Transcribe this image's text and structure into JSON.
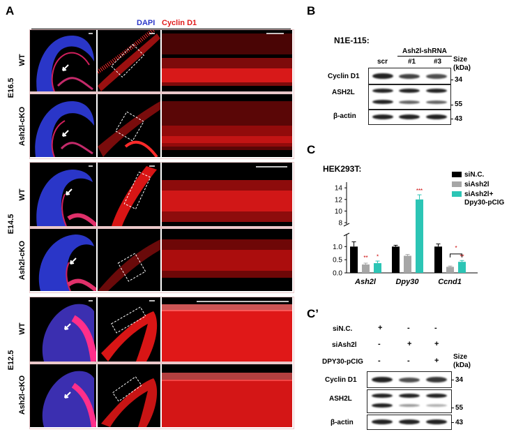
{
  "panel_a": {
    "letter": "A",
    "stain_dapi": "DAPI",
    "stain_cyclin": "Cyclin D1",
    "stages": [
      {
        "stage": "E16.5",
        "rows": [
          "WT",
          "Ash2l-cKO"
        ]
      },
      {
        "stage": "E14.5",
        "rows": [
          "WT",
          "Ash2l-cKO"
        ]
      },
      {
        "stage": "E12.5",
        "rows": [
          "WT",
          "Ash2l-cKO"
        ]
      }
    ],
    "colors": {
      "dapi": "#2a36c8",
      "cyclin": "#e01a1a",
      "border": "#eac7c9"
    }
  },
  "panel_b": {
    "letter": "B",
    "cell_line": "N1E-115:",
    "shrna_label": "Ash2l-shRNA",
    "lanes": [
      "scr",
      "#1",
      "#3"
    ],
    "size_label": "Size",
    "size_unit": "(kDa)",
    "blots": [
      {
        "name": "Cyclin D1",
        "size": "34"
      },
      {
        "name": "ASH2L",
        "size": "55"
      },
      {
        "name": "β-actin",
        "size": "43"
      }
    ]
  },
  "panel_c": {
    "letter": "C",
    "cell_line": "HEK293T:"
  },
  "chart_data": {
    "type": "bar",
    "categories": [
      "Ash2l",
      "Dpy30",
      "Ccnd1"
    ],
    "series": [
      {
        "name": "siN.C.",
        "color": "#000000",
        "values": [
          1.0,
          1.0,
          1.0
        ],
        "errors": [
          0.18,
          0.05,
          0.1
        ]
      },
      {
        "name": "siAsh2l",
        "color": "#a6a6a6",
        "values": [
          0.32,
          0.65,
          0.23
        ],
        "errors": [
          0.05,
          0.05,
          0.03
        ]
      },
      {
        "name": "siAsh2l+\nDpy30-pCIG",
        "color": "#2cc5b5",
        "values": [
          0.37,
          12.0,
          0.42
        ],
        "errors": [
          0.08,
          0.8,
          0.05
        ]
      }
    ],
    "y_lower_ticks": [
      "0.0",
      "0.5",
      "1.0"
    ],
    "y_upper_ticks": [
      "8",
      "10",
      "12",
      "14"
    ],
    "ylim_lower": [
      0,
      1.3
    ],
    "ylim_upper": [
      8,
      14.5
    ],
    "axis_break": true,
    "significance_marks": [
      "**",
      "*",
      "***",
      "**",
      "*"
    ]
  },
  "panel_c2": {
    "letter": "C’",
    "conditions": [
      {
        "name": "siN.C.",
        "marks": [
          "+",
          "-",
          "-"
        ]
      },
      {
        "name": "siAsh2l",
        "marks": [
          "-",
          "+",
          "+"
        ]
      },
      {
        "name": "DPY30-pCIG",
        "marks": [
          "-",
          "-",
          "+"
        ]
      }
    ],
    "size_label": "Size",
    "size_unit": "(kDa)",
    "blots": [
      {
        "name": "Cyclin D1",
        "size": "34"
      },
      {
        "name": "ASH2L",
        "size": "55"
      },
      {
        "name": "β-actin",
        "size": "43"
      }
    ]
  }
}
